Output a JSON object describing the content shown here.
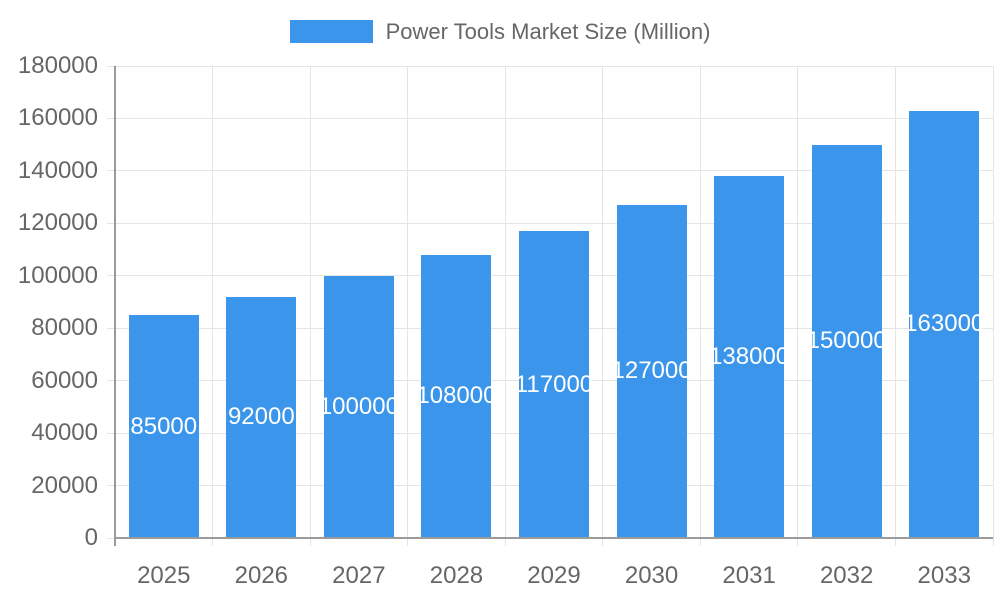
{
  "chart_data": {
    "type": "bar",
    "title": "",
    "xlabel": "",
    "ylabel": "",
    "categories": [
      "2025",
      "2026",
      "2027",
      "2028",
      "2029",
      "2030",
      "2031",
      "2032",
      "2033"
    ],
    "series": [
      {
        "name": "Power Tools Market Size (Million)",
        "values": [
          85000,
          92000,
          100000,
          108000,
          117000,
          127000,
          138000,
          150000,
          163000
        ]
      }
    ],
    "bar_value_labels": [
      "85000",
      "92000",
      "100000",
      "108000",
      "117000",
      "127000",
      "138000",
      "150000",
      "163000"
    ],
    "ylim": [
      0,
      180000
    ],
    "ytick_step": 20000,
    "ytick_labels": [
      "0",
      "20000",
      "40000",
      "60000",
      "80000",
      "100000",
      "120000",
      "140000",
      "160000",
      "180000"
    ],
    "grid": true,
    "legend": {
      "position": "top-center",
      "label": "Power Tools Market Size (Million)"
    },
    "bar_label_position": "inside-center",
    "colors": {
      "bar": "#3B96EB",
      "axis_text": "#666666",
      "grid": "#E5E5E5",
      "axis_line": "#9B9B9B",
      "bar_label": "#FFFFFF",
      "background": "#FFFFFF"
    }
  }
}
